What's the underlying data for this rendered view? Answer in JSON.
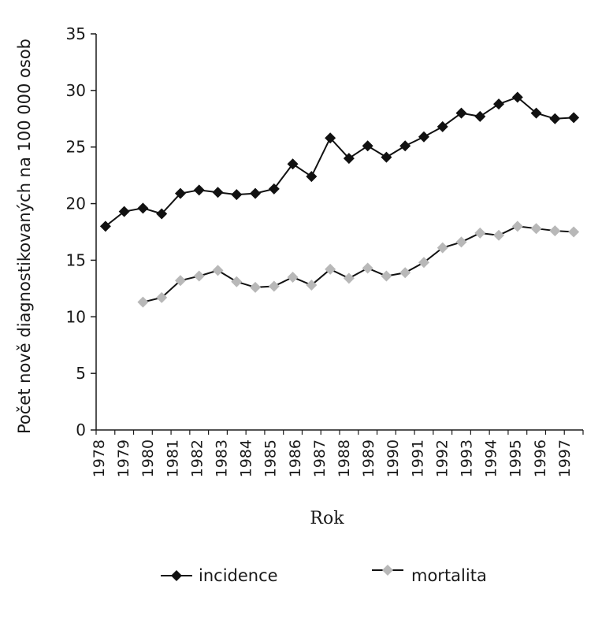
{
  "chart_data": {
    "type": "line",
    "title": "",
    "xlabel": "Rok",
    "ylabel": "Počet nově diagnostikovaných na 100 000 osob",
    "ylim": [
      0,
      35
    ],
    "yticks": [
      0,
      5,
      10,
      15,
      20,
      25,
      30,
      35
    ],
    "xtick_labels": [
      "1978",
      "1979",
      "1980",
      "1981",
      "1982",
      "1983",
      "1984",
      "1985",
      "1986",
      "1987",
      "1988",
      "1989",
      "1990",
      "1991",
      "1992",
      "1993",
      "1994",
      "1995",
      "1996",
      "1997"
    ],
    "grid": false,
    "legend": "bottom",
    "series": [
      {
        "name": "incidence",
        "color": "#111111",
        "marker": "diamond",
        "x": [
          0,
          1,
          2,
          3,
          4,
          5,
          6,
          7,
          8,
          9,
          10,
          11,
          12,
          13,
          14,
          15,
          16,
          17,
          18,
          19,
          20,
          21,
          22,
          23,
          24,
          25
        ],
        "values": [
          18.0,
          19.3,
          19.6,
          19.1,
          20.9,
          21.2,
          21.0,
          20.8,
          20.9,
          21.3,
          23.5,
          22.4,
          25.8,
          24.0,
          25.1,
          24.1,
          25.1,
          25.9,
          26.8,
          28.0,
          27.7,
          28.8,
          29.4,
          28.0,
          27.5,
          27.6
        ]
      },
      {
        "name": "mortalita",
        "color": "#b8b8b8",
        "marker": "diamond",
        "x": [
          2,
          3,
          4,
          5,
          6,
          7,
          8,
          9,
          10,
          11,
          12,
          13,
          14,
          15,
          16,
          17,
          18,
          19,
          20,
          21,
          22,
          23,
          24,
          25
        ],
        "values": [
          11.3,
          11.7,
          13.2,
          13.6,
          14.1,
          13.1,
          12.6,
          12.7,
          13.5,
          12.8,
          14.2,
          13.4,
          14.3,
          13.6,
          13.9,
          14.8,
          16.1,
          16.6,
          17.4,
          17.2,
          18.0,
          17.8,
          17.6,
          17.5
        ]
      }
    ]
  }
}
